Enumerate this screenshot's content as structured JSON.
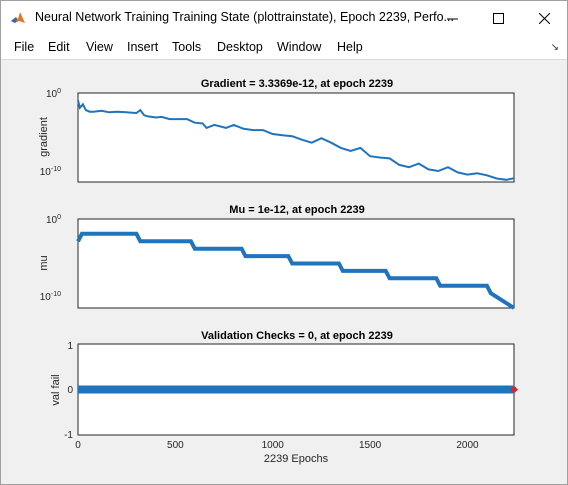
{
  "window": {
    "title": "Neural Network Training Training State (plottrainstate), Epoch 2239, Perfo...",
    "minimize_icon": "minimize-icon",
    "maximize_icon": "maximize-icon",
    "close_icon": "close-icon"
  },
  "menu": {
    "items": [
      "File",
      "Edit",
      "View",
      "Insert",
      "Tools",
      "Desktop",
      "Window",
      "Help"
    ],
    "dock_icon": "dock-arrow-icon"
  },
  "colors": {
    "series": "#1f74bd",
    "marker": "#d62728",
    "axes": "#262626"
  },
  "chart_data": [
    {
      "type": "line",
      "title": "Gradient = 3.3369e-12, at epoch 2239",
      "ylabel": "gradient",
      "yscale": "log",
      "ylim": [
        1e-12,
        1
      ],
      "xlim": [
        0,
        2239
      ],
      "yticks": [
        {
          "exp": 0,
          "label": "10"
        },
        {
          "exp": -10,
          "label": "10"
        }
      ],
      "series": [
        {
          "x": [
            0,
            10,
            25,
            40,
            60,
            80,
            120,
            160,
            200,
            250,
            300,
            320,
            340,
            360,
            400,
            430,
            470,
            500,
            560,
            600,
            640,
            660,
            700,
            760,
            800,
            850,
            900,
            950,
            1000,
            1050,
            1100,
            1150,
            1200,
            1250,
            1300,
            1350,
            1400,
            1450,
            1500,
            1550,
            1600,
            1650,
            1700,
            1750,
            1800,
            1850,
            1900,
            1950,
            2000,
            2050,
            2100,
            2150,
            2200,
            2239
          ],
          "y": [
            0.1,
            0.01,
            0.03,
            0.005,
            0.003,
            0.003,
            0.004,
            0.0025,
            0.003,
            0.0025,
            0.002,
            0.005,
            0.001,
            0.0007,
            0.0005,
            0.0006,
            0.0003,
            0.0003,
            0.0003,
            0.0001,
            8e-05,
            2e-05,
            5e-05,
            2e-05,
            5e-05,
            1.5e-05,
            1e-05,
            1e-05,
            3e-06,
            2e-06,
            1.5e-06,
            5e-07,
            2e-07,
            8e-07,
            2e-07,
            4e-08,
            1.5e-08,
            4e-08,
            3e-09,
            2e-09,
            1.5e-09,
            2e-10,
            1e-10,
            3e-10,
            5e-11,
            3e-11,
            1e-10,
            2e-11,
            1e-11,
            1.5e-11,
            8e-12,
            3e-12,
            2e-12,
            3.3e-12
          ]
        }
      ]
    },
    {
      "type": "line",
      "title": "Mu = 1e-12, at epoch 2239",
      "ylabel": "mu",
      "yscale": "log",
      "ylim": [
        1e-12,
        1
      ],
      "xlim": [
        0,
        2239
      ],
      "yticks": [
        {
          "exp": 0,
          "label": "10"
        },
        {
          "exp": -10,
          "label": "10"
        }
      ],
      "series": [
        {
          "x": [
            0,
            20,
            300,
            320,
            580,
            600,
            840,
            860,
            1080,
            1100,
            1340,
            1360,
            1580,
            1600,
            1840,
            1860,
            2100,
            2120,
            2239
          ],
          "y": [
            0.001,
            0.01,
            0.01,
            0.001,
            0.001,
            0.0001,
            0.0001,
            1e-05,
            1e-05,
            1e-06,
            1e-06,
            1e-07,
            1e-07,
            1e-08,
            1e-08,
            1e-09,
            1e-09,
            1e-10,
            1e-12
          ]
        }
      ]
    },
    {
      "type": "line",
      "title": "Validation Checks = 0, at epoch 2239",
      "ylabel": "val fail",
      "xlabel": "2239 Epochs",
      "ylim": [
        -1,
        1
      ],
      "xlim": [
        0,
        2239
      ],
      "yticks": [
        "1",
        "0",
        "-1"
      ],
      "xticks": [
        "0",
        "500",
        "1000",
        "1500",
        "2000"
      ],
      "xtick_values": [
        0,
        500,
        1000,
        1500,
        2000
      ],
      "series": [
        {
          "x": [
            0,
            2239
          ],
          "y": [
            0,
            0
          ]
        }
      ],
      "marker_point": {
        "x": 2239,
        "y": 0
      }
    }
  ]
}
